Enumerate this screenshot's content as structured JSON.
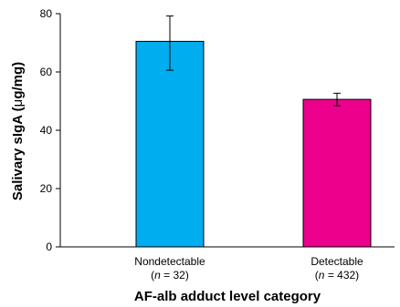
{
  "chart_data": {
    "type": "bar",
    "title": "",
    "xlabel": "AF-alb adduct level category",
    "ylabel_prefix": "Salivary sIgA (",
    "ylabel_mu": "μ",
    "ylabel_suffix": "g/mg)",
    "ylim": [
      0,
      80
    ],
    "yticks": [
      0,
      20,
      40,
      60,
      80
    ],
    "grid": false,
    "categories": [
      "Nondetectable",
      "Detectable"
    ],
    "n_labels": [
      {
        "open": "(",
        "n": "n",
        "rest": " = 32)"
      },
      {
        "open": "(",
        "n": "n",
        "rest": " = 432)"
      }
    ],
    "values": [
      70.5,
      50.6
    ],
    "errors": [
      {
        "low": 60.6,
        "high": 79.2
      },
      {
        "low": 48.4,
        "high": 52.7
      }
    ],
    "colors": [
      "#00aeef",
      "#ec008c"
    ]
  }
}
